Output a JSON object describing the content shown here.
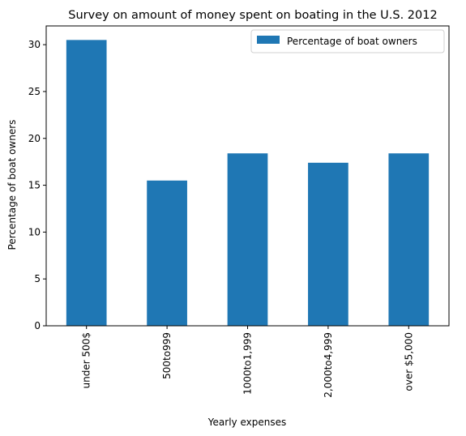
{
  "chart_data": {
    "type": "bar",
    "title": "Survey on amount of money spent on boating in the U.S. 2012",
    "xlabel": "Yearly expenses",
    "ylabel": "Percentage of boat owners",
    "categories": [
      "under 500$",
      "500to999",
      "1000to1,999",
      "2,000to4,999",
      "over $5,000"
    ],
    "series": [
      {
        "name": "Percentage of boat owners",
        "values": [
          30.5,
          15.5,
          18.4,
          17.4,
          18.4
        ],
        "color": "#1f77b4"
      }
    ],
    "ylim": [
      0,
      32
    ],
    "yticks": [
      0,
      5,
      10,
      15,
      20,
      25,
      30
    ],
    "grid": false,
    "legend": "top-right"
  }
}
